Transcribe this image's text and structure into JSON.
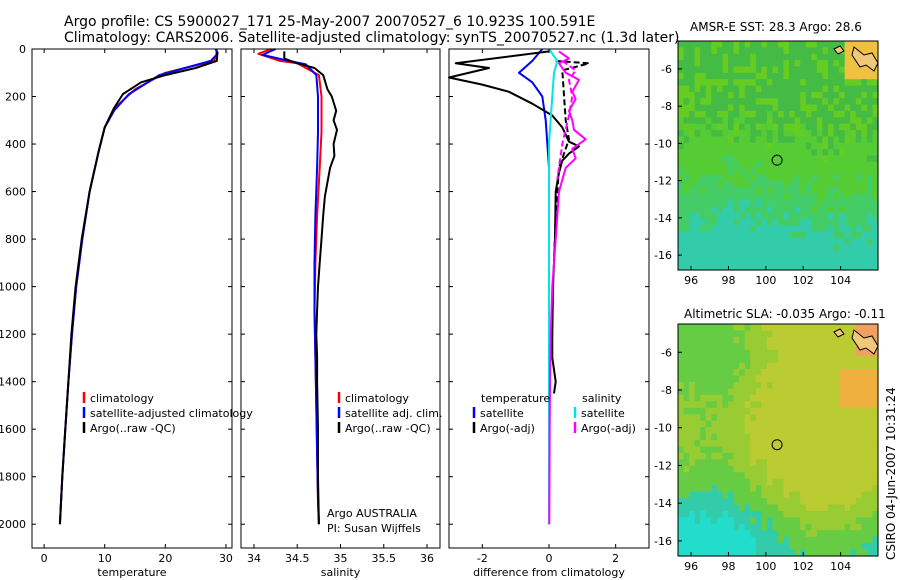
{
  "header": {
    "line1": "Argo profile: CS 5900027_171 25-May-2007 20070527_6 10.923S 100.591E",
    "line2": "Climatology: CARS2006. Satellite-adjusted climatology: synTS_20070527.nc (1.3d later)"
  },
  "credit": "CSIRO 04-Jun-2007 10:31:24",
  "colors": {
    "red": "#ff0000",
    "blue": "#0000ff",
    "black": "#000000",
    "cyan": "#00e5e5",
    "magenta": "#ff00ff"
  },
  "chart_data": [
    {
      "id": "temp",
      "type": "line",
      "xlabel": "temperature",
      "ylabel": "",
      "xlim": [
        -2,
        31
      ],
      "ylim": [
        2100,
        0
      ],
      "xticks": [
        0,
        10,
        20,
        30
      ],
      "yticks": [
        0,
        200,
        400,
        600,
        800,
        1000,
        1200,
        1400,
        1600,
        1800,
        2000
      ],
      "legend": [
        "climatology",
        "satellite-adjusted climatology",
        "Argo(..raw -QC)"
      ],
      "series": [
        {
          "name": "climatology",
          "color": "red",
          "points": [
            [
              28.5,
              0
            ],
            [
              28.4,
              30
            ],
            [
              28.0,
              50
            ],
            [
              20,
              100
            ],
            [
              15,
              170
            ],
            [
              12,
              240
            ],
            [
              10,
              330
            ],
            [
              9,
              430
            ],
            [
              7.5,
              600
            ],
            [
              6.3,
              800
            ],
            [
              5.3,
              1000
            ],
            [
              4.6,
              1200
            ],
            [
              4.0,
              1400
            ],
            [
              3.5,
              1600
            ],
            [
              3.0,
              1800
            ],
            [
              2.6,
              2000
            ]
          ]
        },
        {
          "name": "satellite-adjusted climatology",
          "color": "blue",
          "points": [
            [
              28.3,
              0
            ],
            [
              28.6,
              20
            ],
            [
              27.5,
              50
            ],
            [
              19,
              110
            ],
            [
              14,
              190
            ],
            [
              11.5,
              260
            ],
            [
              10,
              330
            ],
            [
              9,
              430
            ],
            [
              7.5,
              600
            ],
            [
              6.3,
              800
            ],
            [
              5.3,
              1000
            ],
            [
              4.6,
              1200
            ],
            [
              4.0,
              1400
            ],
            [
              3.5,
              1600
            ],
            [
              3.0,
              1800
            ],
            [
              2.6,
              2000
            ]
          ]
        },
        {
          "name": "Argo(..raw -QC)",
          "color": "black",
          "points": [
            [
              28.6,
              10
            ],
            [
              28.5,
              50
            ],
            [
              25,
              80
            ],
            [
              20,
              110
            ],
            [
              16,
              140
            ],
            [
              13,
              190
            ],
            [
              11.5,
              250
            ],
            [
              10,
              330
            ],
            [
              9,
              430
            ],
            [
              7.5,
              600
            ],
            [
              6.2,
              800
            ],
            [
              5.2,
              1000
            ],
            [
              4.5,
              1200
            ],
            [
              4.0,
              1400
            ],
            [
              3.5,
              1600
            ],
            [
              3.0,
              1800
            ],
            [
              2.6,
              2000
            ]
          ]
        }
      ]
    },
    {
      "id": "sal",
      "type": "line",
      "xlabel": "salinity",
      "ylabel": "",
      "xlim": [
        33.85,
        36.15
      ],
      "ylim": [
        2100,
        0
      ],
      "xticks": [
        34,
        34.5,
        35,
        35.5,
        36
      ],
      "yticks": [
        0,
        200,
        400,
        600,
        800,
        1000,
        1200,
        1400,
        1600,
        1800,
        2000
      ],
      "legend": [
        "climatology",
        "satellite adj. clim.",
        "Argo(..raw -QC)"
      ],
      "annotation": [
        "Argo AUSTRALIA",
        "PI: Susan Wijffels"
      ],
      "series": [
        {
          "name": "climatology",
          "color": "red",
          "points": [
            [
              34.2,
              0
            ],
            [
              34.05,
              20
            ],
            [
              34.3,
              50
            ],
            [
              34.5,
              60
            ],
            [
              34.75,
              110
            ],
            [
              34.78,
              200
            ],
            [
              34.78,
              350
            ],
            [
              34.76,
              500
            ],
            [
              34.73,
              700
            ],
            [
              34.71,
              900
            ],
            [
              34.7,
              1100
            ],
            [
              34.71,
              1300
            ],
            [
              34.72,
              1500
            ],
            [
              34.73,
              1700
            ],
            [
              34.74,
              1900
            ],
            [
              34.75,
              2000
            ]
          ]
        },
        {
          "name": "satellite adj. clim.",
          "color": "blue",
          "points": [
            [
              34.25,
              0
            ],
            [
              34.1,
              25
            ],
            [
              34.4,
              50
            ],
            [
              34.6,
              65
            ],
            [
              34.72,
              110
            ],
            [
              34.74,
              200
            ],
            [
              34.74,
              350
            ],
            [
              34.73,
              500
            ],
            [
              34.71,
              700
            ],
            [
              34.7,
              900
            ],
            [
              34.7,
              1100
            ],
            [
              34.71,
              1300
            ],
            [
              34.72,
              1500
            ],
            [
              34.73,
              1700
            ],
            [
              34.74,
              1900
            ],
            [
              34.75,
              2000
            ]
          ]
        },
        {
          "name": "Argo(..raw -QC)",
          "color": "black",
          "points": [
            [
              34.35,
              10
            ],
            [
              34.35,
              40
            ],
            [
              34.5,
              60
            ],
            [
              34.7,
              80
            ],
            [
              34.8,
              110
            ],
            [
              34.85,
              170
            ],
            [
              34.9,
              200
            ],
            [
              34.95,
              260
            ],
            [
              34.92,
              300
            ],
            [
              34.96,
              340
            ],
            [
              34.92,
              400
            ],
            [
              34.93,
              450
            ],
            [
              34.88,
              500
            ],
            [
              34.85,
              560
            ],
            [
              34.82,
              620
            ],
            [
              34.8,
              700
            ],
            [
              34.78,
              800
            ],
            [
              34.76,
              900
            ],
            [
              34.74,
              1000
            ],
            [
              34.73,
              1100
            ],
            [
              34.72,
              1200
            ],
            [
              34.73,
              1300
            ],
            [
              34.73,
              1400
            ],
            [
              34.74,
              1600
            ],
            [
              34.74,
              1800
            ],
            [
              34.75,
              2000
            ]
          ]
        }
      ]
    },
    {
      "id": "diff",
      "type": "line",
      "xlabel": "difference from climatology",
      "ylabel": "",
      "xlim": [
        -3,
        3
      ],
      "ylim": [
        2100,
        0
      ],
      "xticks": [
        -2,
        0,
        2
      ],
      "yticks": [
        0,
        200,
        400,
        600,
        800,
        1000,
        1200,
        1400,
        1600,
        1800,
        2000
      ],
      "legend_left_title": "temperature",
      "legend_right_title": "salinity",
      "legend_left": [
        "satellite",
        "Argo(-adj)"
      ],
      "legend_right": [
        "satellite",
        "Argo(-adj)"
      ],
      "series": [
        {
          "name": "temperature satellite",
          "color": "blue",
          "dashed": false,
          "points": [
            [
              -0.2,
              0
            ],
            [
              -0.5,
              50
            ],
            [
              -0.9,
              100
            ],
            [
              -0.5,
              140
            ],
            [
              -0.2,
              200
            ],
            [
              -0.1,
              300
            ],
            [
              0,
              500
            ],
            [
              0,
              2000
            ]
          ]
        },
        {
          "name": "temperature Argo(-adj)",
          "color": "black",
          "dashed": false,
          "points": [
            [
              0,
              10
            ],
            [
              -2.8,
              60
            ],
            [
              -1.8,
              80
            ],
            [
              -3.0,
              120
            ],
            [
              -2.0,
              150
            ],
            [
              -1.2,
              180
            ],
            [
              -0.5,
              230
            ],
            [
              0.1,
              280
            ],
            [
              0.4,
              330
            ],
            [
              0.6,
              390
            ],
            [
              0.9,
              410
            ],
            [
              0.6,
              440
            ],
            [
              0.4,
              470
            ],
            [
              0.3,
              520
            ],
            [
              0.2,
              600
            ],
            [
              0.18,
              800
            ],
            [
              0.12,
              1000
            ],
            [
              0.1,
              1200
            ],
            [
              0.1,
              1300
            ],
            [
              0.2,
              1400
            ],
            [
              0.15,
              1450
            ]
          ]
        },
        {
          "name": "temperature Argo(-adj) dashed",
          "color": "black",
          "dashed": true,
          "points": [
            [
              0.2,
              50
            ],
            [
              1.2,
              60
            ],
            [
              0.4,
              90
            ],
            [
              0.5,
              300
            ],
            [
              0.6,
              380
            ],
            [
              0.3,
              500
            ],
            [
              0.2,
              700
            ],
            [
              0.15,
              900
            ]
          ]
        },
        {
          "name": "salinity satellite",
          "color": "cyan",
          "dashed": false,
          "points": [
            [
              0,
              0
            ],
            [
              0.25,
              50
            ],
            [
              0.15,
              100
            ],
            [
              0.1,
              200
            ],
            [
              0,
              400
            ],
            [
              0,
              2000
            ]
          ]
        },
        {
          "name": "salinity Argo(-adj)",
          "color": "magenta",
          "dashed": false,
          "points": [
            [
              0.3,
              10
            ],
            [
              0.6,
              40
            ],
            [
              0.3,
              60
            ],
            [
              0.5,
              100
            ],
            [
              0.9,
              130
            ],
            [
              0.7,
              180
            ],
            [
              0.8,
              210
            ],
            [
              0.6,
              260
            ],
            [
              0.7,
              300
            ],
            [
              0.75,
              340
            ],
            [
              1.1,
              380
            ],
            [
              0.7,
              420
            ],
            [
              0.8,
              460
            ],
            [
              0.5,
              500
            ],
            [
              0.3,
              600
            ],
            [
              0.2,
              800
            ],
            [
              0.1,
              1000
            ],
            [
              0.05,
              1200
            ],
            [
              0.03,
              1400
            ],
            [
              0.02,
              1600
            ],
            [
              0.01,
              2000
            ]
          ]
        },
        {
          "name": "salinity Argo(-adj) dashed",
          "color": "magenta",
          "dashed": true,
          "points": [
            [
              0.4,
              50
            ],
            [
              0.8,
              90
            ],
            [
              0.6,
              130
            ],
            [
              0.7,
              200
            ],
            [
              0.6,
              280
            ],
            [
              0.4,
              400
            ],
            [
              0.25,
              550
            ]
          ]
        }
      ]
    }
  ],
  "maps": [
    {
      "id": "sst",
      "title": "AMSR-E SST: 28.3 Argo: 28.6",
      "xticks": [
        "96",
        "98",
        "100",
        "102",
        "104"
      ],
      "yticks": [
        "-6",
        "-8",
        "-10",
        "-12",
        "-14",
        "-16"
      ],
      "lon": [
        95.3,
        106
      ],
      "lat": [
        -4.5,
        -16.8
      ],
      "marker": [
        100.6,
        -10.9
      ]
    },
    {
      "id": "sla",
      "title": "Altimetric SLA: -0.035 Argo: -0.11",
      "xticks": [
        "96",
        "98",
        "100",
        "102",
        "104"
      ],
      "yticks": [
        "-6",
        "-8",
        "-10",
        "-12",
        "-14",
        "-16"
      ],
      "lon": [
        95.3,
        106
      ],
      "lat": [
        -4.5,
        -16.8
      ],
      "marker": [
        100.6,
        -10.9
      ]
    }
  ]
}
